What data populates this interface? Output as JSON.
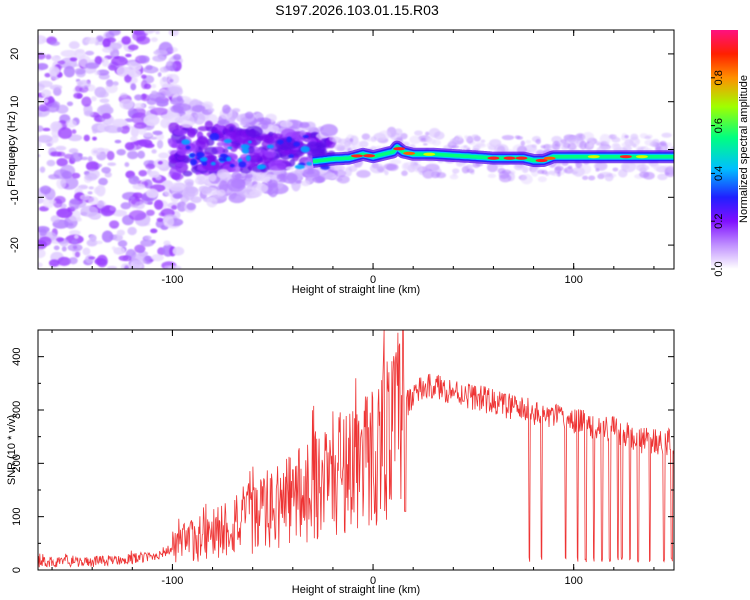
{
  "title": "S197.2026.103.01.15.R03",
  "colors": {
    "snr_line": "#ee3333",
    "background": "#ffffff",
    "axis": "#000000"
  },
  "chart_data": [
    {
      "type": "heatmap",
      "name": "spectrogram",
      "xlabel": "Height of straight line (km)",
      "ylabel": "Frequency (Hz)",
      "xlim": [
        -167,
        150
      ],
      "ylim": [
        -25,
        25
      ],
      "xticks": [
        -100,
        0,
        100
      ],
      "yticks": [
        -20,
        -10,
        0,
        10,
        20
      ],
      "colorbar": {
        "label": "Normalized spectral amplitude",
        "range": [
          0,
          1
        ],
        "ticks": [
          0.0,
          0.2,
          0.4,
          0.6,
          0.8
        ],
        "colormap": [
          "#ffffff",
          "#9a20ff",
          "#2020ff",
          "#00d0ff",
          "#00ff60",
          "#d0ff00",
          "#ff8000",
          "#ff1060"
        ]
      },
      "ridge_frequency": {
        "x": [
          -30,
          -20,
          -12,
          -5,
          0,
          5,
          10,
          12,
          15,
          20,
          30,
          50,
          60,
          75,
          80,
          85,
          90,
          100,
          120,
          150
        ],
        "y": [
          -2.5,
          -2,
          -1.8,
          -1,
          -1.5,
          -1,
          -0.5,
          0.5,
          -0.5,
          -1,
          -1,
          -1.5,
          -1.8,
          -1.8,
          -2.3,
          -2.3,
          -1.5,
          -1.5,
          -1.5,
          -1.5
        ]
      }
    },
    {
      "type": "line",
      "name": "snr",
      "xlabel": "Height of straight line (km)",
      "ylabel": "SNR (10 * v/v)",
      "xlim": [
        -167,
        150
      ],
      "ylim": [
        0,
        450
      ],
      "xticks": [
        -100,
        0,
        100
      ],
      "yticks": [
        0,
        100,
        200,
        300,
        400
      ],
      "envelope": {
        "x": [
          -167,
          -140,
          -110,
          -100,
          -90,
          -80,
          -70,
          -60,
          -50,
          -40,
          -30,
          -20,
          -10,
          0,
          10,
          15,
          20,
          25,
          30,
          40,
          60,
          80,
          100,
          110,
          120,
          130,
          140,
          150
        ],
        "y": [
          15,
          15,
          25,
          40,
          55,
          70,
          85,
          100,
          115,
          135,
          160,
          180,
          200,
          215,
          260,
          300,
          330,
          340,
          345,
          335,
          315,
          295,
          280,
          270,
          265,
          245,
          240,
          240
        ]
      },
      "dropouts_x": [
        78,
        84,
        96,
        102,
        106,
        110,
        114,
        118,
        122,
        124,
        128,
        132,
        138,
        145,
        149
      ]
    }
  ]
}
